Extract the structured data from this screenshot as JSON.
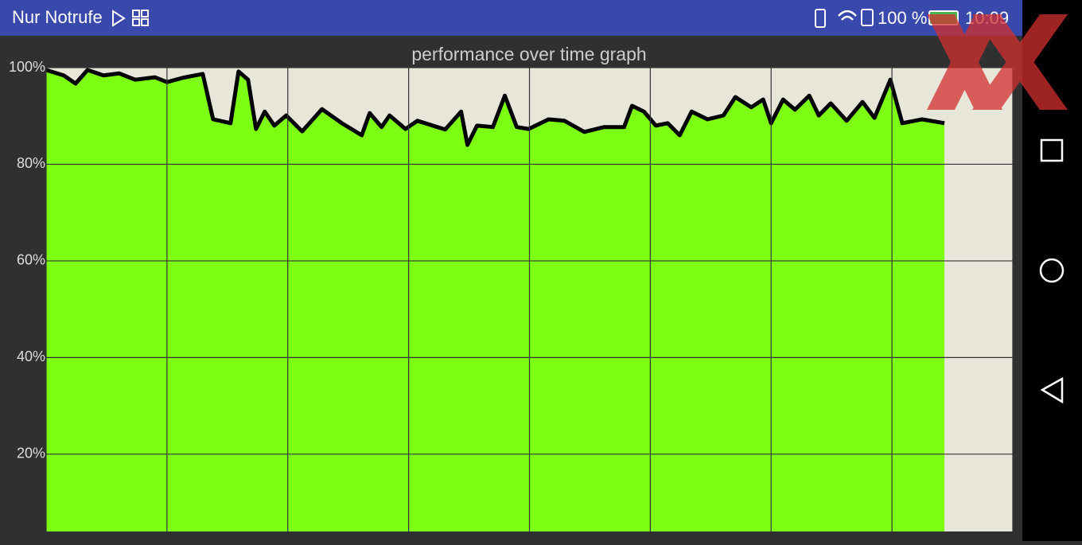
{
  "status_bar": {
    "left_text": "Nur Notrufe",
    "battery": "100 %",
    "time": "10:09"
  },
  "chart_data": {
    "type": "line",
    "title": "performance over time graph",
    "x": [
      0,
      22,
      37,
      52,
      72,
      92,
      112,
      137,
      152,
      172,
      197,
      210,
      232,
      242,
      254,
      264,
      275,
      287,
      302,
      322,
      347,
      372,
      397,
      407,
      422,
      432,
      452,
      467,
      502,
      522,
      530,
      542,
      562,
      577,
      592,
      607,
      632,
      652,
      677,
      702,
      727,
      737,
      752,
      767,
      782,
      797,
      812,
      832,
      852,
      867,
      887,
      902,
      912,
      927,
      942,
      960,
      972,
      987,
      1007,
      1027,
      1042,
      1062,
      1077,
      1102,
      1130
    ],
    "series": [
      {
        "color": "#000000",
        "fill": "#7dff14",
        "values": [
          99.5,
          98.4,
          96.7,
          99.5,
          98.4,
          98.8,
          97.5,
          98,
          97,
          97.9,
          98.7,
          89.3,
          88.5,
          99.2,
          97.5,
          87.3,
          90.9,
          88,
          90.1,
          86.8,
          91.4,
          88.5,
          86,
          90.6,
          87.7,
          90.1,
          87.3,
          89,
          87.2,
          90.9,
          84,
          88,
          87.7,
          94.2,
          87.7,
          87.3,
          89.3,
          89,
          86.7,
          87.7,
          87.7,
          92.1,
          90.9,
          88,
          88.5,
          86,
          90.9,
          89.3,
          90.1,
          93.9,
          91.8,
          93.4,
          88.5,
          93.4,
          91.3,
          94.2,
          90.1,
          92.6,
          89,
          92.9,
          89.6,
          97.5,
          88.5,
          89.3,
          88.5
        ]
      }
    ],
    "xlim": [
      0,
      1216
    ],
    "xticks": [
      0,
      152,
      304,
      456,
      608,
      760,
      912,
      1064,
      1216
    ],
    "ylim": [
      4,
      100
    ],
    "yticks": [
      {
        "value": 20,
        "label": "20%"
      },
      {
        "value": 40,
        "label": "40%"
      },
      {
        "value": 60,
        "label": "60%"
      },
      {
        "value": 80,
        "label": "80%"
      },
      {
        "value": 100,
        "label": "100%"
      }
    ],
    "grid": true
  }
}
